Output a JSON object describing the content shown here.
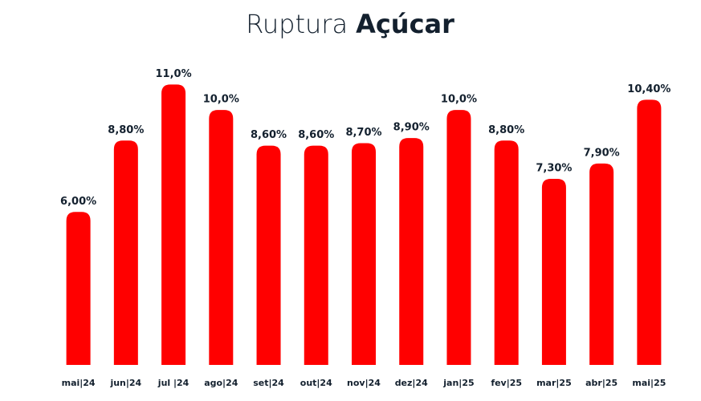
{
  "chart_data": {
    "type": "bar",
    "title": "Ruptura",
    "title_emphasis": "Açúcar",
    "categories": [
      "mai|24",
      "jun|24",
      "jul |24",
      "ago|24",
      "set|24",
      "out|24",
      "nov|24",
      "dez|24",
      "jan|25",
      "fev|25",
      "mar|25",
      "abr|25",
      "mai|25"
    ],
    "values": [
      6.0,
      8.8,
      11.0,
      10.0,
      8.6,
      8.6,
      8.7,
      8.9,
      10.0,
      8.8,
      7.3,
      7.9,
      10.4
    ],
    "value_labels": [
      "6,00%",
      "8,80%",
      "11,0%",
      "10,0%",
      "8,60%",
      "8,60%",
      "8,70%",
      "8,90%",
      "10,0%",
      "8,80%",
      "7,30%",
      "7,90%",
      "10,40%"
    ],
    "color": "#ff0000",
    "ylim": [
      0,
      14
    ]
  }
}
